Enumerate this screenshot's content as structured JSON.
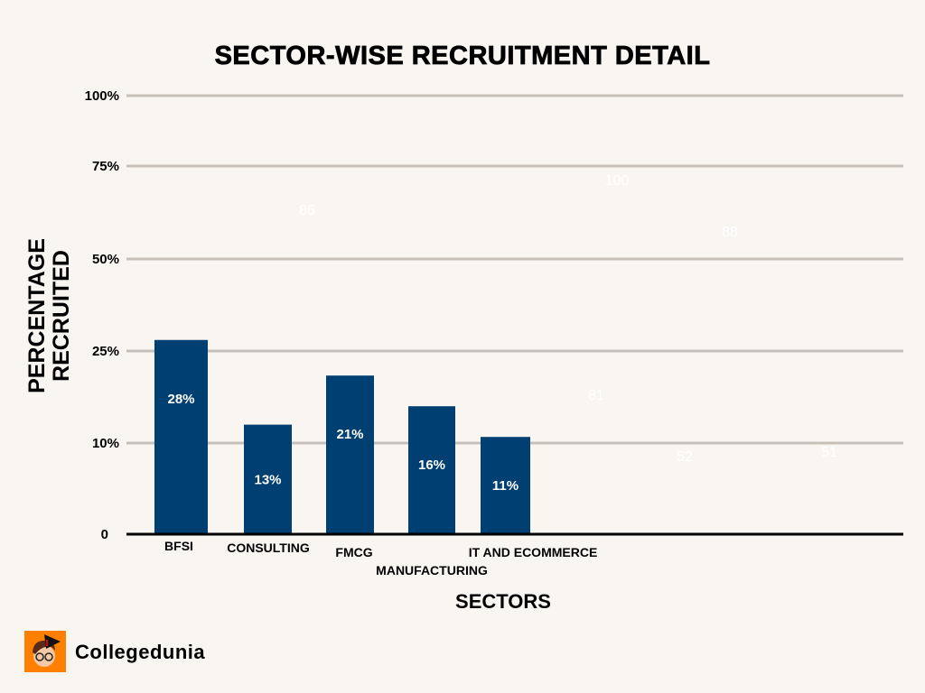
{
  "chart_data": {
    "type": "bar",
    "title": "SECTOR-WISE RECRUITMENT DETAIL",
    "xlabel": "SECTORS",
    "ylabel": [
      "PERCENTAGE",
      "RECRUITED"
    ],
    "categories": [
      "BFSI",
      "CONSULTING",
      "FMCG",
      "MANUFACTURING",
      "IT AND ECOMMERCE"
    ],
    "values": [
      28,
      13,
      21,
      16,
      11
    ],
    "data_labels": [
      "28%",
      "13%",
      "21%",
      "16%",
      "11%"
    ],
    "y_ticks": [
      0,
      10,
      25,
      50,
      75,
      100
    ],
    "y_tick_labels": [
      "0",
      "10%",
      "25%",
      "50%",
      "75%",
      "100%"
    ],
    "ylim": [
      0,
      100
    ],
    "grid": true,
    "bar_color": "#003f72",
    "faint_labels": [
      "86",
      "100",
      "88",
      "81",
      "52",
      "51"
    ]
  },
  "brand": {
    "name": "Collegedunia",
    "logo_color": "#ff7f00"
  }
}
